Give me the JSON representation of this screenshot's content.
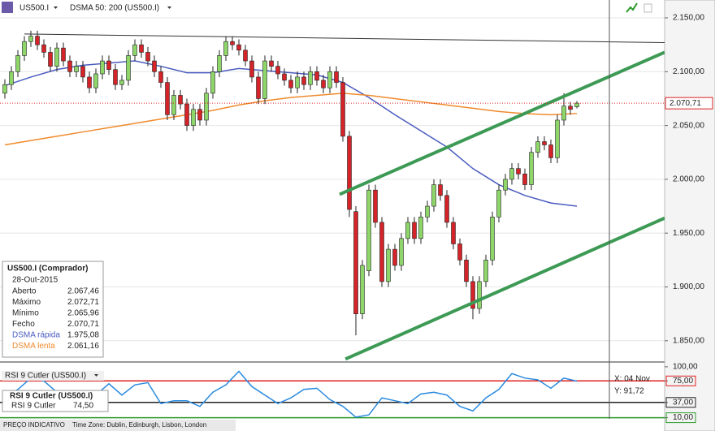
{
  "toolbar": {
    "symbol": "US500.I",
    "indicator": "DSMA 50: 200 (US500.I)"
  },
  "footer": {
    "mode": "PREÇO INDICATIVO",
    "timezone": "Time Zone: Dublin, Edinburgh, Lisbon, London"
  },
  "info_box": {
    "title": "US500.I (Comprador)",
    "date": "28-Out-2015",
    "rows": [
      {
        "label": "Aberto",
        "value": "2.067,46"
      },
      {
        "label": "Máximo",
        "value": "2.072,71"
      },
      {
        "label": "Mínimo",
        "value": "2.065,96"
      },
      {
        "label": "Fecho",
        "value": "2.070,71"
      },
      {
        "label": "DSMA rápida",
        "value": "1.975,08",
        "color": "#4a5cc0"
      },
      {
        "label": "DSMA lenta",
        "value": "2.061,16",
        "color": "#f08a2c"
      }
    ]
  },
  "chart_data": [
    {
      "type": "candlestick",
      "up_color": "#8fd66a",
      "down_color": "#d4242a",
      "xlim": [
        -0.75,
        101.5
      ],
      "ylim": [
        1831,
        2166.6
      ],
      "yticks": [
        {
          "value": 2150,
          "label": "2.150,00"
        },
        {
          "value": 2100,
          "label": "2.100,00"
        },
        {
          "value": 2050,
          "label": "2.050,00"
        },
        {
          "value": 2000,
          "label": "2.000,00"
        },
        {
          "value": 1950,
          "label": "1.950,00"
        },
        {
          "value": 1900,
          "label": "1.900,00"
        },
        {
          "value": 1850,
          "label": "1.850,00"
        }
      ],
      "grid": true,
      "current_price_label": "2.070,71",
      "open": [
        2080,
        2088,
        2100,
        2115,
        2128,
        2133,
        2125,
        2118,
        2105,
        2122,
        2110,
        2100,
        2105,
        2095,
        2085,
        2098,
        2110,
        2102,
        2088,
        2092,
        2115,
        2125,
        2118,
        2110,
        2100,
        2090,
        2060,
        2078,
        2070,
        2050,
        2065,
        2055,
        2080,
        2100,
        2115,
        2128,
        2125,
        2120,
        2110,
        2095,
        2075,
        2110,
        2105,
        2098,
        2092,
        2085,
        2095,
        2088,
        2100,
        2092,
        2085,
        2100,
        2090,
        2040,
        1970,
        1875,
        1915,
        1990,
        1960,
        1905,
        1935,
        1920,
        1945,
        1960,
        1945,
        1965,
        1975,
        1995,
        1985,
        1960,
        1940,
        1925,
        1905,
        1880,
        1905,
        1925,
        1965,
        1990,
        2000,
        2010,
        2005,
        1995,
        2025,
        2035,
        2032,
        2020,
        2055,
        2068,
        2067.46
      ],
      "high": [
        2093,
        2105,
        2120,
        2133,
        2138,
        2138,
        2130,
        2123,
        2127,
        2127,
        2115,
        2110,
        2110,
        2100,
        2103,
        2115,
        2115,
        2107,
        2097,
        2120,
        2130,
        2130,
        2123,
        2115,
        2105,
        2095,
        2083,
        2083,
        2075,
        2070,
        2070,
        2085,
        2105,
        2120,
        2133,
        2133,
        2130,
        2125,
        2115,
        2100,
        2115,
        2115,
        2110,
        2103,
        2097,
        2100,
        2100,
        2105,
        2105,
        2097,
        2105,
        2105,
        2095,
        2045,
        1975,
        1925,
        1995,
        1995,
        1965,
        1940,
        1940,
        1950,
        1965,
        1965,
        1970,
        1980,
        2000,
        2000,
        1990,
        1965,
        1945,
        1930,
        1910,
        1910,
        1930,
        1970,
        1995,
        2005,
        2015,
        2015,
        2010,
        2030,
        2040,
        2040,
        2037,
        2060,
        2080,
        2072,
        2072.71
      ],
      "low": [
        2075,
        2083,
        2095,
        2110,
        2123,
        2120,
        2113,
        2100,
        2100,
        2105,
        2095,
        2095,
        2090,
        2080,
        2080,
        2093,
        2097,
        2083,
        2083,
        2087,
        2110,
        2113,
        2105,
        2095,
        2085,
        2055,
        2055,
        2065,
        2045,
        2045,
        2050,
        2050,
        2075,
        2095,
        2110,
        2120,
        2115,
        2105,
        2090,
        2070,
        2070,
        2100,
        2093,
        2087,
        2080,
        2080,
        2083,
        2083,
        2087,
        2080,
        2080,
        2085,
        2035,
        1965,
        1855,
        1870,
        1910,
        1955,
        1900,
        1900,
        1915,
        1915,
        1940,
        1940,
        1940,
        1960,
        1970,
        1980,
        1955,
        1935,
        1920,
        1900,
        1870,
        1875,
        1900,
        1920,
        1960,
        1985,
        1995,
        2000,
        1990,
        1990,
        2020,
        2027,
        2015,
        2015,
        2050,
        2060,
        2065.96
      ],
      "close": [
        2088,
        2100,
        2115,
        2128,
        2133,
        2125,
        2118,
        2105,
        2122,
        2110,
        2100,
        2105,
        2095,
        2085,
        2098,
        2110,
        2102,
        2088,
        2092,
        2115,
        2125,
        2118,
        2110,
        2100,
        2090,
        2060,
        2078,
        2070,
        2050,
        2065,
        2055,
        2080,
        2100,
        2115,
        2128,
        2125,
        2120,
        2110,
        2095,
        2075,
        2110,
        2105,
        2098,
        2092,
        2085,
        2095,
        2088,
        2100,
        2092,
        2085,
        2100,
        2090,
        2040,
        1972,
        1875,
        1920,
        1990,
        1960,
        1905,
        1935,
        1920,
        1945,
        1960,
        1945,
        1965,
        1975,
        1995,
        1985,
        1960,
        1940,
        1925,
        1905,
        1880,
        1905,
        1925,
        1965,
        1990,
        2000,
        2010,
        2005,
        1995,
        2025,
        2035,
        2032,
        2020,
        2055,
        2068,
        2065,
        2070.71
      ],
      "series": [
        {
          "color": "#4a5cc0",
          "x": [
            0,
            4,
            8,
            12,
            16,
            20,
            24,
            28,
            32,
            36,
            40,
            44,
            48,
            52,
            56,
            60,
            64,
            68,
            72,
            76,
            80,
            84,
            88
          ],
          "values": [
            2087,
            2095,
            2102,
            2106,
            2108,
            2110,
            2105,
            2099,
            2099,
            2103,
            2101,
            2099,
            2097,
            2090,
            2076,
            2060,
            2045,
            2030,
            2010,
            1995,
            1985,
            1978,
            1975.08
          ]
        },
        {
          "color": "#f08a2c",
          "x": [
            0,
            4,
            8,
            12,
            16,
            20,
            24,
            28,
            32,
            36,
            40,
            44,
            48,
            52,
            56,
            60,
            64,
            68,
            72,
            76,
            80,
            84,
            88
          ],
          "values": [
            2032,
            2036,
            2040,
            2044,
            2048,
            2052,
            2056,
            2060,
            2064,
            2069,
            2073,
            2076,
            2078,
            2080,
            2078,
            2075,
            2072,
            2069,
            2066,
            2063,
            2061,
            2060,
            2061.16
          ]
        }
      ],
      "trendlines": [
        {
          "color": "#3d9a55",
          "x": [
            51.5,
            101.5
          ],
          "values": [
            1986,
            2118
          ]
        },
        {
          "color": "#3d9a55",
          "x": [
            52.4,
            101.5
          ],
          "values": [
            1833,
            1964
          ]
        },
        {
          "color": "#333333",
          "x": [
            3,
            101.5
          ],
          "values": [
            2135,
            2127
          ]
        }
      ]
    },
    {
      "type": "line",
      "title": "RSI 9 Cutler (US500.I)",
      "legend_title": "RSI 9 Cutler (US500.I)",
      "legend_name": "RSI 9 Cutler",
      "legend_value": "74,50",
      "crosshair_x_label": "X: 04 Nov",
      "crosshair_y_label": "Y: 91,72",
      "xlim": [
        -0.75,
        101.5
      ],
      "ylim": [
        8,
        107
      ],
      "yticks": [
        {
          "value": 100,
          "label": "100,00"
        },
        {
          "value": 75,
          "label": "75,00"
        },
        {
          "value": 37,
          "label": "37,00"
        },
        {
          "value": 10,
          "label": "10,00"
        }
      ],
      "levels": [
        {
          "value": 75,
          "color": "#e02020"
        },
        {
          "value": 37,
          "color": "#222222"
        },
        {
          "value": 10,
          "color": "#2a9a2a"
        }
      ],
      "series": [
        {
          "color": "#2a8ae0",
          "x": [
            0,
            2,
            4,
            6,
            8,
            10,
            12,
            14,
            16,
            18,
            20,
            22,
            24,
            26,
            28,
            30,
            32,
            34,
            36,
            38,
            40,
            42,
            44,
            46,
            48,
            50,
            52,
            54,
            56,
            58,
            60,
            62,
            64,
            66,
            68,
            70,
            72,
            74,
            76,
            78,
            80,
            82,
            84,
            86,
            88
          ],
          "values": [
            47,
            60,
            80,
            75,
            55,
            35,
            33,
            50,
            70,
            50,
            68,
            72,
            35,
            40,
            40,
            30,
            55,
            68,
            92,
            65,
            50,
            35,
            45,
            60,
            62,
            42,
            30,
            11,
            15,
            45,
            40,
            35,
            52,
            55,
            50,
            30,
            22,
            45,
            60,
            88,
            80,
            77,
            62,
            80,
            74.5
          ]
        }
      ]
    }
  ]
}
